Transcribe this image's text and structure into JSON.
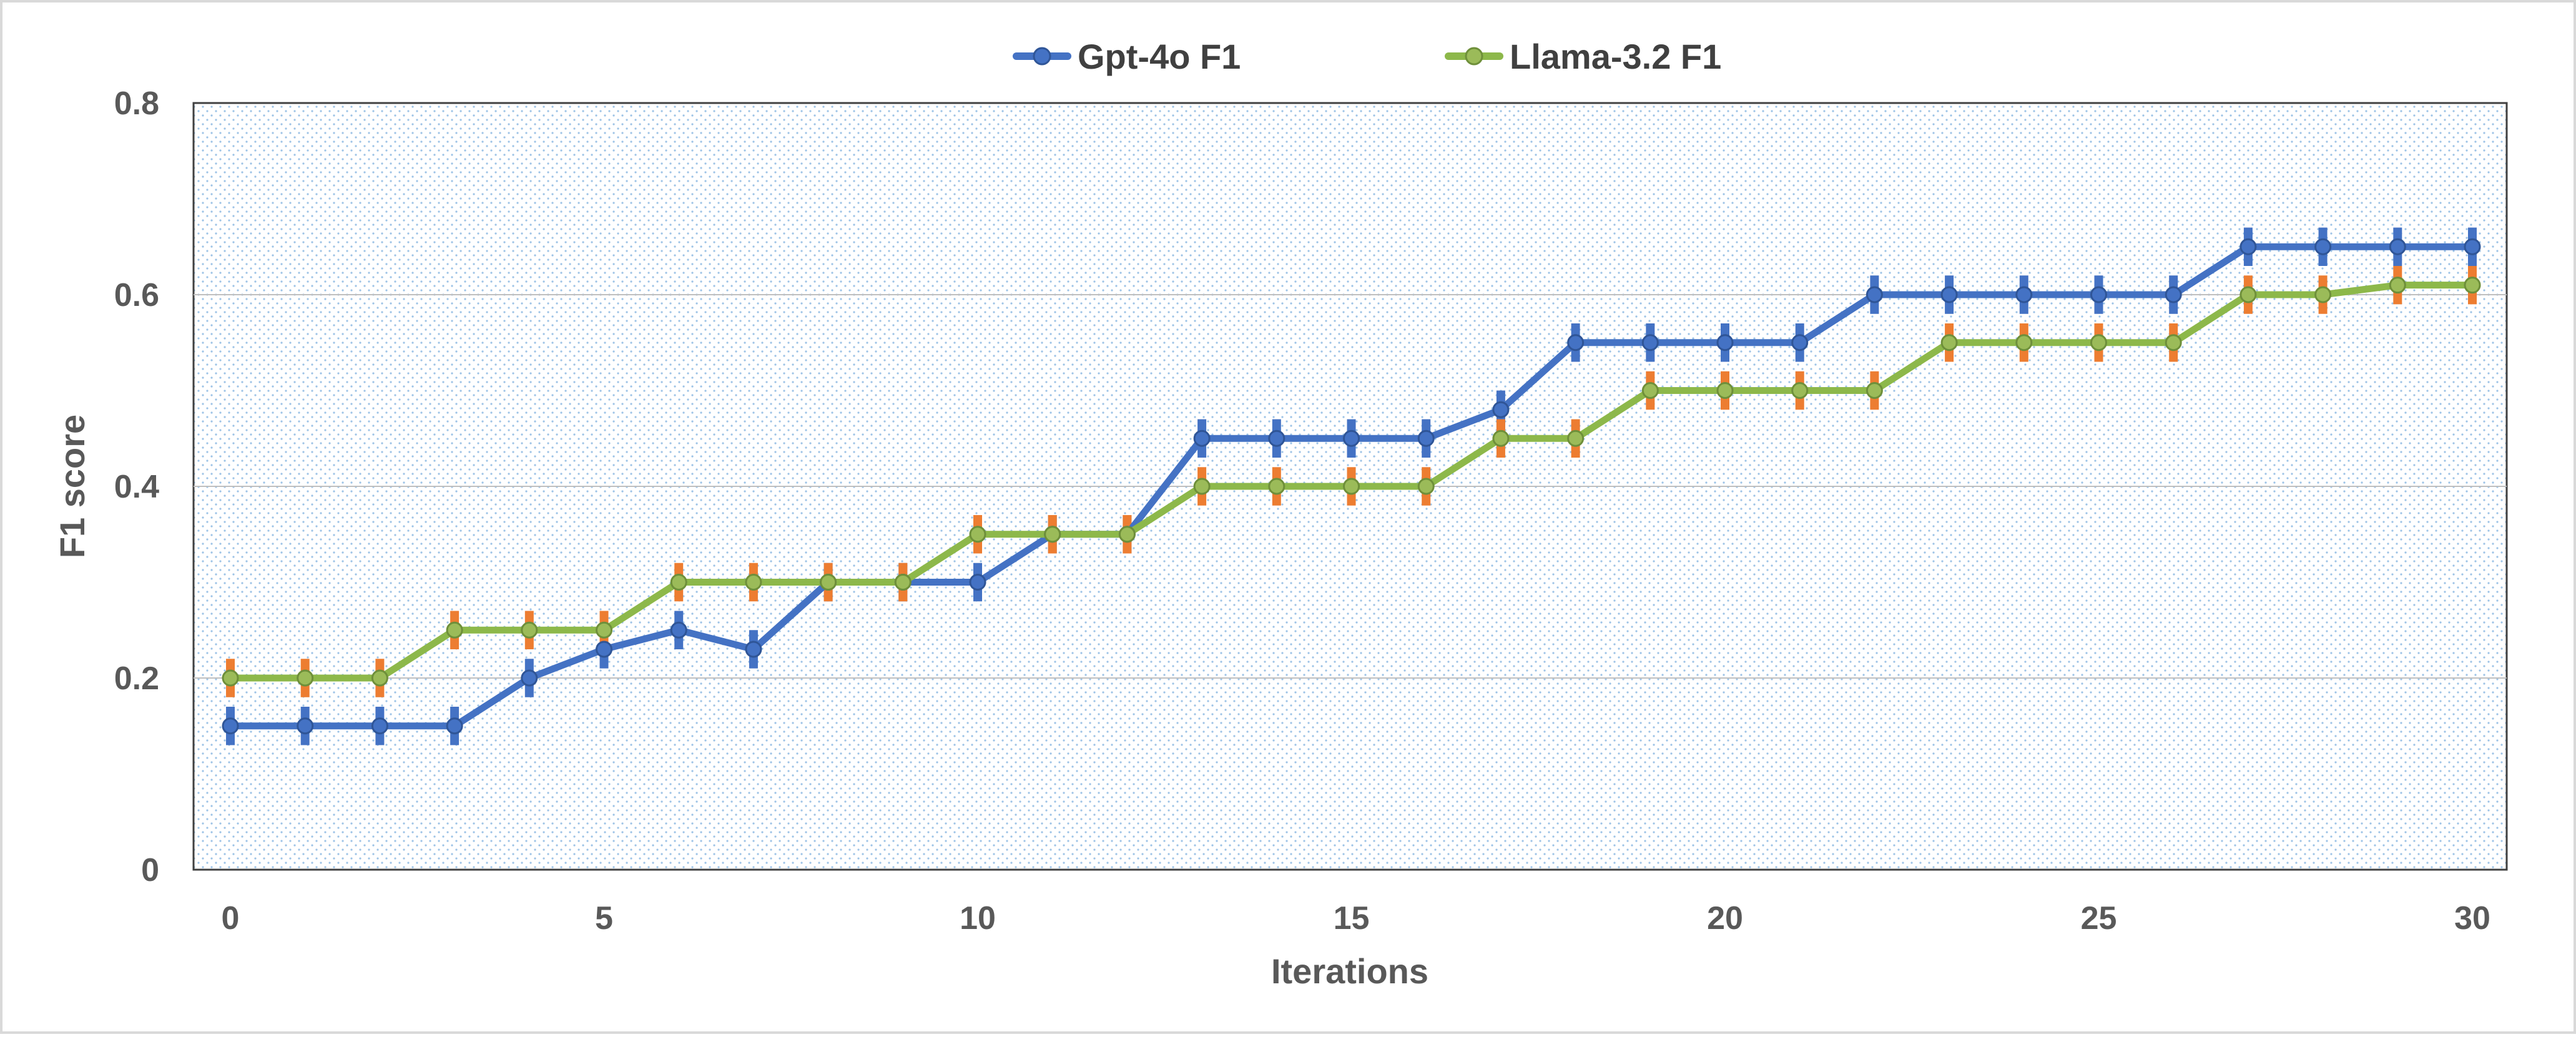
{
  "chart_data": {
    "type": "line",
    "xlabel": "Iterations",
    "ylabel": "F1 score",
    "xlim": [
      0,
      30
    ],
    "ylim": [
      0,
      0.8
    ],
    "x_ticks": [
      "0",
      "5",
      "10",
      "15",
      "20",
      "25",
      "30"
    ],
    "y_ticks": [
      "0",
      "0.2",
      "0.4",
      "0.6",
      "0.8"
    ],
    "grid": "horizontal",
    "plot_background": "dotted",
    "legend_position": "top-center",
    "x": [
      0,
      1,
      2,
      3,
      4,
      5,
      6,
      7,
      8,
      9,
      10,
      11,
      12,
      13,
      14,
      15,
      16,
      17,
      18,
      19,
      20,
      21,
      22,
      23,
      24,
      25,
      26,
      27,
      28,
      29,
      30
    ],
    "series": [
      {
        "name": "Gpt-4o F1",
        "color": "#4472C4",
        "values": [
          0.15,
          0.15,
          0.15,
          0.15,
          0.2,
          0.23,
          0.25,
          0.23,
          0.3,
          0.3,
          0.3,
          0.35,
          0.35,
          0.45,
          0.45,
          0.45,
          0.45,
          0.48,
          0.55,
          0.55,
          0.55,
          0.55,
          0.6,
          0.6,
          0.6,
          0.6,
          0.6,
          0.65,
          0.65,
          0.65,
          0.65
        ],
        "error": 0.02
      },
      {
        "name": "Llama-3.2 F1",
        "color": "#8DB84A",
        "error_color": "#ED7D31",
        "values": [
          0.2,
          0.2,
          0.2,
          0.25,
          0.25,
          0.25,
          0.3,
          0.3,
          0.3,
          0.3,
          0.35,
          0.35,
          0.35,
          0.4,
          0.4,
          0.4,
          0.4,
          0.45,
          0.45,
          0.5,
          0.5,
          0.5,
          0.5,
          0.55,
          0.55,
          0.55,
          0.55,
          0.6,
          0.6,
          0.61,
          0.61
        ],
        "error": 0.02
      }
    ]
  }
}
